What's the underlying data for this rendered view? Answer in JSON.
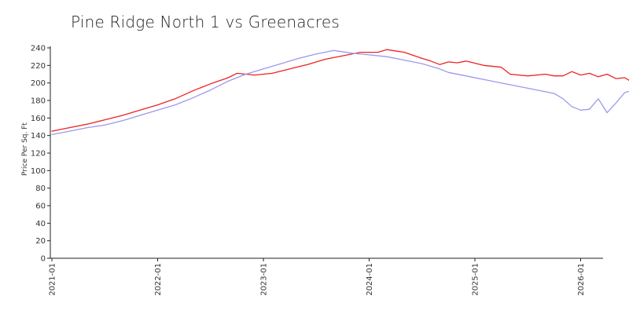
{
  "chart_data": {
    "type": "line",
    "title": "Pine Ridge North 1 vs Greenacres",
    "xlabel": "",
    "ylabel": "Price Per Sq. Ft",
    "ylim": [
      0,
      240
    ],
    "xlim": [
      "2021-01",
      "2026-03"
    ],
    "yticks": [
      0,
      20,
      40,
      60,
      80,
      100,
      120,
      140,
      160,
      180,
      200,
      220,
      240
    ],
    "xticks": [
      "2021-01",
      "2022-01",
      "2023-01",
      "2024-01",
      "2025-01",
      "2026-01"
    ],
    "grid": false,
    "legend": "none",
    "series": [
      {
        "color": "#ee2222",
        "points": [
          [
            "2021-01",
            145
          ],
          [
            "2021-03",
            149
          ],
          [
            "2021-05",
            153
          ],
          [
            "2021-07",
            158
          ],
          [
            "2021-09",
            163
          ],
          [
            "2021-11",
            169
          ],
          [
            "2022-01",
            175
          ],
          [
            "2022-03",
            182
          ],
          [
            "2022-05",
            191
          ],
          [
            "2022-07",
            199
          ],
          [
            "2022-09",
            206
          ],
          [
            "2022-10",
            211
          ],
          [
            "2022-12",
            209
          ],
          [
            "2023-02",
            211
          ],
          [
            "2023-04",
            216
          ],
          [
            "2023-06",
            221
          ],
          [
            "2023-08",
            227
          ],
          [
            "2023-10",
            231
          ],
          [
            "2023-12",
            235
          ],
          [
            "2024-02",
            235
          ],
          [
            "2024-03",
            238
          ],
          [
            "2024-05",
            235
          ],
          [
            "2024-07",
            228
          ],
          [
            "2024-08",
            225
          ],
          [
            "2024-09",
            221
          ],
          [
            "2024-10",
            224
          ],
          [
            "2024-11",
            223
          ],
          [
            "2024-12",
            225
          ],
          [
            "2025-02",
            220
          ],
          [
            "2025-04",
            218
          ],
          [
            "2025-05",
            210
          ],
          [
            "2025-07",
            208
          ],
          [
            "2025-09",
            210
          ],
          [
            "2025-10",
            208
          ],
          [
            "2025-11",
            208
          ],
          [
            "2025-12",
            213
          ],
          [
            "2026-01",
            209
          ],
          [
            "2026-02",
            211
          ],
          [
            "2026-03",
            207
          ],
          [
            "2026-04",
            210
          ],
          [
            "2026-05",
            205
          ],
          [
            "2026-06",
            206
          ],
          [
            "2026-07",
            200
          ]
        ]
      },
      {
        "color": "#9999ee",
        "points": [
          [
            "2021-01",
            141
          ],
          [
            "2021-03",
            145
          ],
          [
            "2021-05",
            149
          ],
          [
            "2021-07",
            152
          ],
          [
            "2021-09",
            157
          ],
          [
            "2021-11",
            163
          ],
          [
            "2022-01",
            169
          ],
          [
            "2022-03",
            175
          ],
          [
            "2022-05",
            183
          ],
          [
            "2022-07",
            192
          ],
          [
            "2022-09",
            202
          ],
          [
            "2022-11",
            210
          ],
          [
            "2023-01",
            216
          ],
          [
            "2023-03",
            222
          ],
          [
            "2023-05",
            228
          ],
          [
            "2023-07",
            233
          ],
          [
            "2023-09",
            237
          ],
          [
            "2023-11",
            234
          ],
          [
            "2024-01",
            232
          ],
          [
            "2024-03",
            230
          ],
          [
            "2024-05",
            226
          ],
          [
            "2024-07",
            222
          ],
          [
            "2024-09",
            216
          ],
          [
            "2024-10",
            212
          ],
          [
            "2024-12",
            208
          ],
          [
            "2025-02",
            204
          ],
          [
            "2025-04",
            200
          ],
          [
            "2025-06",
            196
          ],
          [
            "2025-08",
            192
          ],
          [
            "2025-10",
            188
          ],
          [
            "2025-11",
            182
          ],
          [
            "2025-12",
            173
          ],
          [
            "2026-01",
            169
          ],
          [
            "2026-02",
            170
          ],
          [
            "2026-03",
            182
          ],
          [
            "2026-04",
            166
          ],
          [
            "2026-05",
            177
          ],
          [
            "2026-06",
            189
          ],
          [
            "2026-07",
            192
          ]
        ]
      }
    ]
  }
}
